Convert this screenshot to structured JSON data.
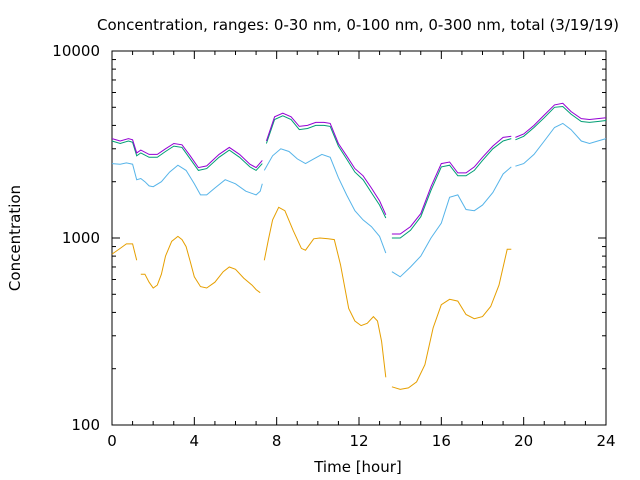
{
  "chart_data": {
    "type": "line",
    "title": "Concentration, ranges: 0-30 nm, 0-100 nm, 0-300 nm, total (3/19/19)",
    "xlabel": "Time [hour]",
    "ylabel": "Concentration",
    "xlim": [
      0,
      24
    ],
    "ylim": [
      100,
      10000
    ],
    "yscale": "log",
    "x_ticks": [
      "0",
      "4",
      "8",
      "12",
      "16",
      "20",
      "24"
    ],
    "y_ticks": [
      "100",
      "1000",
      "10000"
    ],
    "grid": false,
    "legend": "none",
    "series": [
      {
        "color": "#e69f00",
        "segments": [
          [
            [
              0,
              820
            ],
            [
              0.4,
              880
            ],
            [
              0.7,
              930
            ],
            [
              1.0,
              930
            ],
            [
              1.2,
              760
            ]
          ],
          [
            [
              1.4,
              640
            ],
            [
              1.6,
              640
            ],
            [
              1.8,
              580
            ],
            [
              2.0,
              540
            ],
            [
              2.2,
              560
            ],
            [
              2.4,
              640
            ],
            [
              2.6,
              800
            ],
            [
              2.9,
              960
            ],
            [
              3.2,
              1020
            ],
            [
              3.4,
              980
            ],
            [
              3.6,
              900
            ],
            [
              3.8,
              750
            ],
            [
              4.0,
              620
            ],
            [
              4.3,
              550
            ],
            [
              4.6,
              540
            ],
            [
              5.0,
              580
            ],
            [
              5.4,
              660
            ],
            [
              5.7,
              700
            ],
            [
              6.0,
              680
            ],
            [
              6.4,
              610
            ],
            [
              6.8,
              560
            ],
            [
              7.0,
              530
            ],
            [
              7.2,
              510
            ]
          ],
          [
            [
              7.4,
              760
            ],
            [
              7.6,
              980
            ],
            [
              7.8,
              1250
            ],
            [
              8.1,
              1460
            ],
            [
              8.4,
              1400
            ],
            [
              8.8,
              1100
            ],
            [
              9.2,
              880
            ],
            [
              9.4,
              860
            ],
            [
              9.8,
              990
            ],
            [
              10.1,
              1000
            ],
            [
              10.5,
              990
            ],
            [
              10.8,
              980
            ],
            [
              11.1,
              720
            ],
            [
              11.5,
              420
            ],
            [
              11.8,
              360
            ],
            [
              12.1,
              340
            ],
            [
              12.4,
              350
            ],
            [
              12.7,
              380
            ],
            [
              12.9,
              360
            ],
            [
              13.1,
              280
            ],
            [
              13.3,
              180
            ]
          ],
          [
            [
              13.6,
              160
            ],
            [
              14.0,
              155
            ],
            [
              14.4,
              158
            ],
            [
              14.8,
              170
            ],
            [
              15.2,
              210
            ],
            [
              15.6,
              330
            ],
            [
              16.0,
              440
            ],
            [
              16.4,
              470
            ],
            [
              16.8,
              460
            ],
            [
              17.2,
              390
            ],
            [
              17.6,
              370
            ],
            [
              18.0,
              380
            ],
            [
              18.4,
              430
            ],
            [
              18.8,
              560
            ],
            [
              19.2,
              870
            ],
            [
              19.4,
              870
            ]
          ]
        ]
      },
      {
        "color": "#56b4e9",
        "segments": [
          [
            [
              0,
              2500
            ],
            [
              0.4,
              2480
            ],
            [
              0.7,
              2520
            ],
            [
              1.0,
              2480
            ],
            [
              1.2,
              2050
            ],
            [
              1.4,
              2080
            ],
            [
              1.6,
              2000
            ],
            [
              1.8,
              1900
            ],
            [
              2.0,
              1880
            ],
            [
              2.4,
              2000
            ],
            [
              2.8,
              2250
            ],
            [
              3.2,
              2450
            ],
            [
              3.6,
              2300
            ],
            [
              4.0,
              1950
            ],
            [
              4.3,
              1700
            ],
            [
              4.6,
              1700
            ],
            [
              5.0,
              1850
            ],
            [
              5.5,
              2050
            ],
            [
              6.0,
              1950
            ],
            [
              6.5,
              1780
            ],
            [
              7.0,
              1700
            ],
            [
              7.2,
              1780
            ],
            [
              7.3,
              1950
            ]
          ],
          [
            [
              7.4,
              2300
            ],
            [
              7.8,
              2750
            ],
            [
              8.2,
              3000
            ],
            [
              8.6,
              2900
            ],
            [
              9.0,
              2650
            ],
            [
              9.4,
              2500
            ],
            [
              9.8,
              2650
            ],
            [
              10.2,
              2800
            ],
            [
              10.6,
              2700
            ],
            [
              11.0,
              2100
            ],
            [
              11.4,
              1700
            ],
            [
              11.8,
              1400
            ],
            [
              12.2,
              1250
            ],
            [
              12.6,
              1150
            ],
            [
              13.0,
              1020
            ],
            [
              13.3,
              830
            ]
          ],
          [
            [
              13.6,
              660
            ],
            [
              14.0,
              620
            ],
            [
              14.5,
              700
            ],
            [
              15.0,
              800
            ],
            [
              15.5,
              1000
            ],
            [
              16.0,
              1200
            ],
            [
              16.4,
              1650
            ],
            [
              16.8,
              1700
            ],
            [
              17.2,
              1420
            ],
            [
              17.6,
              1400
            ],
            [
              18.0,
              1500
            ],
            [
              18.5,
              1750
            ],
            [
              19.0,
              2200
            ],
            [
              19.4,
              2400
            ]
          ],
          [
            [
              19.6,
              2420
            ],
            [
              20.0,
              2500
            ],
            [
              20.5,
              2800
            ],
            [
              21.0,
              3300
            ],
            [
              21.5,
              3900
            ],
            [
              21.9,
              4100
            ],
            [
              22.3,
              3800
            ],
            [
              22.8,
              3300
            ],
            [
              23.2,
              3200
            ],
            [
              23.6,
              3300
            ],
            [
              24,
              3400
            ]
          ]
        ]
      },
      {
        "color": "#009e73",
        "segments": [
          [
            [
              0,
              3300
            ],
            [
              0.4,
              3200
            ],
            [
              0.8,
              3300
            ],
            [
              1.0,
              3250
            ],
            [
              1.2,
              2750
            ],
            [
              1.4,
              2850
            ],
            [
              1.8,
              2700
            ],
            [
              2.2,
              2700
            ],
            [
              2.6,
              2900
            ],
            [
              3.0,
              3100
            ],
            [
              3.4,
              3050
            ],
            [
              3.8,
              2650
            ],
            [
              4.2,
              2300
            ],
            [
              4.6,
              2350
            ],
            [
              5.2,
              2700
            ],
            [
              5.7,
              2950
            ],
            [
              6.2,
              2700
            ],
            [
              6.7,
              2400
            ],
            [
              7.0,
              2300
            ],
            [
              7.3,
              2500
            ]
          ],
          [
            [
              7.5,
              3200
            ],
            [
              7.9,
              4300
            ],
            [
              8.3,
              4500
            ],
            [
              8.7,
              4300
            ],
            [
              9.1,
              3800
            ],
            [
              9.5,
              3850
            ],
            [
              9.9,
              4000
            ],
            [
              10.3,
              4000
            ],
            [
              10.6,
              3950
            ],
            [
              11.0,
              3100
            ],
            [
              11.4,
              2650
            ],
            [
              11.8,
              2250
            ],
            [
              12.2,
              2050
            ],
            [
              12.6,
              1750
            ],
            [
              13.0,
              1500
            ],
            [
              13.3,
              1280
            ]
          ],
          [
            [
              13.6,
              1000
            ],
            [
              14.0,
              1000
            ],
            [
              14.5,
              1100
            ],
            [
              15.0,
              1300
            ],
            [
              15.5,
              1800
            ],
            [
              16.0,
              2400
            ],
            [
              16.4,
              2450
            ],
            [
              16.8,
              2150
            ],
            [
              17.2,
              2150
            ],
            [
              17.6,
              2300
            ],
            [
              18.0,
              2600
            ],
            [
              18.5,
              3000
            ],
            [
              19.0,
              3300
            ],
            [
              19.4,
              3400
            ]
          ],
          [
            [
              19.6,
              3350
            ],
            [
              20.0,
              3500
            ],
            [
              20.5,
              3900
            ],
            [
              21.0,
              4400
            ],
            [
              21.5,
              5000
            ],
            [
              21.9,
              5050
            ],
            [
              22.3,
              4600
            ],
            [
              22.8,
              4200
            ],
            [
              23.2,
              4150
            ],
            [
              23.6,
              4200
            ],
            [
              24,
              4250
            ]
          ]
        ]
      },
      {
        "color": "#9400d3",
        "segments": [
          [
            [
              0,
              3400
            ],
            [
              0.4,
              3300
            ],
            [
              0.8,
              3400
            ],
            [
              1.0,
              3350
            ],
            [
              1.2,
              2850
            ],
            [
              1.4,
              2950
            ],
            [
              1.8,
              2800
            ],
            [
              2.2,
              2800
            ],
            [
              2.6,
              3000
            ],
            [
              3.0,
              3200
            ],
            [
              3.4,
              3150
            ],
            [
              3.8,
              2750
            ],
            [
              4.2,
              2380
            ],
            [
              4.6,
              2430
            ],
            [
              5.2,
              2800
            ],
            [
              5.7,
              3050
            ],
            [
              6.2,
              2800
            ],
            [
              6.7,
              2480
            ],
            [
              7.0,
              2380
            ],
            [
              7.3,
              2600
            ]
          ],
          [
            [
              7.5,
              3300
            ],
            [
              7.9,
              4450
            ],
            [
              8.3,
              4650
            ],
            [
              8.7,
              4450
            ],
            [
              9.1,
              3950
            ],
            [
              9.5,
              4000
            ],
            [
              9.9,
              4150
            ],
            [
              10.3,
              4150
            ],
            [
              10.6,
              4100
            ],
            [
              11.0,
              3200
            ],
            [
              11.4,
              2750
            ],
            [
              11.8,
              2350
            ],
            [
              12.2,
              2150
            ],
            [
              12.6,
              1850
            ],
            [
              13.0,
              1580
            ],
            [
              13.3,
              1330
            ]
          ],
          [
            [
              13.6,
              1050
            ],
            [
              14.0,
              1050
            ],
            [
              14.5,
              1150
            ],
            [
              15.0,
              1350
            ],
            [
              15.5,
              1880
            ],
            [
              16.0,
              2500
            ],
            [
              16.4,
              2550
            ],
            [
              16.8,
              2230
            ],
            [
              17.2,
              2230
            ],
            [
              17.6,
              2400
            ],
            [
              18.0,
              2700
            ],
            [
              18.5,
              3100
            ],
            [
              19.0,
              3450
            ],
            [
              19.4,
              3500
            ]
          ],
          [
            [
              19.6,
              3450
            ],
            [
              20.0,
              3600
            ],
            [
              20.5,
              4000
            ],
            [
              21.0,
              4550
            ],
            [
              21.5,
              5150
            ],
            [
              21.9,
              5250
            ],
            [
              22.3,
              4750
            ],
            [
              22.8,
              4350
            ],
            [
              23.2,
              4300
            ],
            [
              23.6,
              4350
            ],
            [
              24,
              4400
            ]
          ]
        ]
      }
    ]
  }
}
